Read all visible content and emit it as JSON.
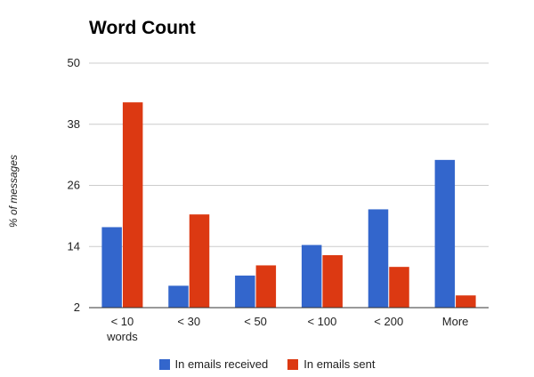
{
  "chart_data": {
    "type": "bar",
    "title": "Word Count",
    "xlabel": "",
    "ylabel": "% of messages",
    "ylim": [
      2,
      50
    ],
    "yticks": [
      "2",
      "14",
      "26",
      "38",
      "50"
    ],
    "categories": [
      [
        "< 10",
        "words"
      ],
      [
        "< 30"
      ],
      [
        "< 50"
      ],
      [
        "< 100"
      ],
      [
        "< 200"
      ],
      [
        "More"
      ]
    ],
    "series": [
      {
        "name": "In emails received",
        "color": "#3366cc",
        "values": [
          17.8,
          6.3,
          8.3,
          14.3,
          21.3,
          31.0
        ]
      },
      {
        "name": "In emails sent",
        "color": "#dc3912",
        "values": [
          42.3,
          20.3,
          10.3,
          12.3,
          10.0,
          4.4
        ]
      }
    ],
    "grid": true,
    "legend_position": "bottom"
  }
}
